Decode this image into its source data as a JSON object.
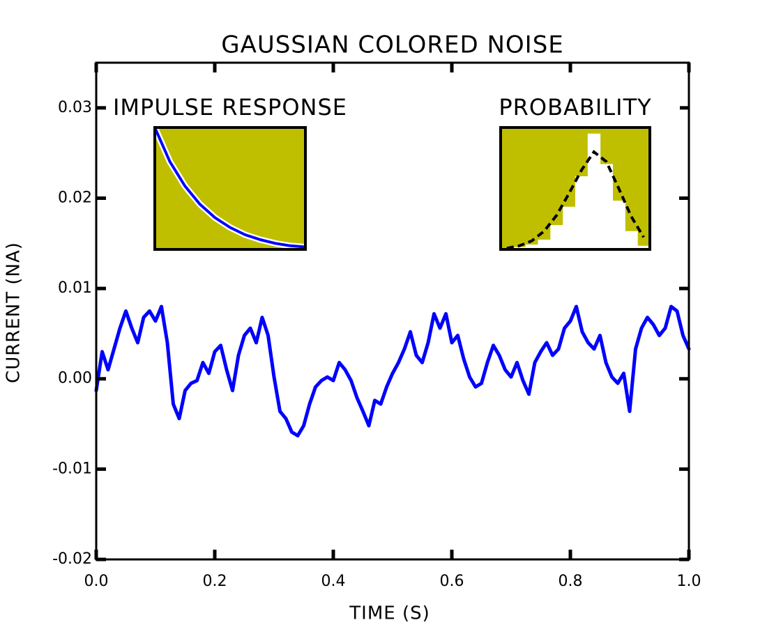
{
  "chart_data": [
    {
      "type": "line",
      "title": "GAUSSIAN COLORED NOISE",
      "xlabel": "TIME (S)",
      "ylabel": "CURRENT (NA)",
      "color": "#0000ff",
      "x": [
        0.0,
        0.01,
        0.02,
        0.03,
        0.04,
        0.05,
        0.06,
        0.07,
        0.08,
        0.09,
        0.1,
        0.11,
        0.12,
        0.13,
        0.14,
        0.15,
        0.16,
        0.17,
        0.18,
        0.19,
        0.2,
        0.21,
        0.22,
        0.23,
        0.24,
        0.25,
        0.26,
        0.27,
        0.28,
        0.29,
        0.3,
        0.31,
        0.32,
        0.33,
        0.34,
        0.35,
        0.36,
        0.37,
        0.38,
        0.39,
        0.4,
        0.41,
        0.42,
        0.43,
        0.44,
        0.45,
        0.46,
        0.47,
        0.48,
        0.49,
        0.5,
        0.51,
        0.52,
        0.53,
        0.54,
        0.55,
        0.56,
        0.57,
        0.58,
        0.59,
        0.6,
        0.61,
        0.62,
        0.63,
        0.64,
        0.65,
        0.66,
        0.67,
        0.68,
        0.69,
        0.7,
        0.71,
        0.72,
        0.73,
        0.74,
        0.75,
        0.76,
        0.77,
        0.78,
        0.79,
        0.8,
        0.81,
        0.82,
        0.83,
        0.84,
        0.85,
        0.86,
        0.87,
        0.88,
        0.89,
        0.9,
        0.91,
        0.92,
        0.93,
        0.94,
        0.95,
        0.96,
        0.97,
        0.98,
        0.99,
        1.0
      ],
      "values": [
        -0.0013,
        0.003,
        0.001,
        0.0033,
        0.0056,
        0.0075,
        0.0056,
        0.004,
        0.0068,
        0.0075,
        0.0064,
        0.008,
        0.004,
        -0.0028,
        -0.0044,
        -0.0013,
        -0.0005,
        -0.0002,
        0.0018,
        0.0006,
        0.003,
        0.0037,
        0.001,
        -0.0013,
        0.0026,
        0.0048,
        0.0056,
        0.004,
        0.0068,
        0.0048,
        0.0002,
        -0.0036,
        -0.0044,
        -0.0059,
        -0.0063,
        -0.0052,
        -0.0028,
        -0.0009,
        -0.0002,
        0.0002,
        -0.0002,
        0.0018,
        0.001,
        -0.0002,
        -0.0021,
        -0.0036,
        -0.0052,
        -0.0024,
        -0.0028,
        -0.0009,
        0.0006,
        0.0018,
        0.0033,
        0.0052,
        0.0026,
        0.0018,
        0.004,
        0.0072,
        0.0056,
        0.0072,
        0.004,
        0.0048,
        0.0022,
        0.0002,
        -0.0009,
        -0.0005,
        0.0018,
        0.0037,
        0.0026,
        0.001,
        0.0002,
        0.0018,
        -0.0002,
        -0.0017,
        0.0018,
        0.003,
        0.004,
        0.0026,
        0.0033,
        0.0056,
        0.0064,
        0.008,
        0.0052,
        0.004,
        0.0033,
        0.0048,
        0.0018,
        0.0002,
        -0.0005,
        0.0006,
        -0.0036,
        0.0033,
        0.0056,
        0.0068,
        0.006,
        0.0048,
        0.0056,
        0.008,
        0.0075,
        0.0048,
        0.0033
      ],
      "xlim": [
        0,
        1
      ],
      "ylim": [
        -0.02,
        0.035
      ],
      "xticks": [
        {
          "value": 0,
          "label": "0.0"
        },
        0.2,
        0.4,
        0.6,
        0.8,
        {
          "value": 1,
          "label": "1.0"
        }
      ],
      "yticks": [
        -0.02,
        -0.01,
        {
          "value": 0,
          "label": "0.00"
        },
        0.01,
        0.02,
        0.03
      ]
    },
    {
      "type": "line",
      "title": "IMPULSE RESPONSE",
      "color": "#0000ff",
      "background": "#bfbf00",
      "x": [
        0,
        0.1,
        0.2,
        0.3,
        0.4,
        0.5,
        0.6,
        0.7,
        0.8,
        0.9,
        1.0
      ],
      "values": [
        1.0,
        0.72,
        0.52,
        0.37,
        0.26,
        0.18,
        0.12,
        0.08,
        0.05,
        0.03,
        0.02
      ],
      "xlim": [
        0,
        1
      ],
      "ylim": [
        0,
        1
      ]
    },
    {
      "type": "histogram",
      "title": "PROBABILITY",
      "color": "#ffffff",
      "background": "#bfbf00",
      "bins": [
        -0.008,
        -0.0065,
        -0.005,
        -0.0035,
        -0.002,
        -0.0005,
        0.001,
        0.0025,
        0.004,
        0.0055,
        0.007,
        0.0085,
        0.01
      ],
      "values": [
        1,
        2,
        4,
        8,
        20,
        35,
        60,
        95,
        70,
        40,
        15,
        3
      ],
      "fit": {
        "color": "#000000",
        "x": [
          -0.00725,
          -0.00575,
          -0.00425,
          -0.00275,
          -0.00125,
          0.00025,
          0.00175,
          0.00325,
          0.00475,
          0.00625,
          0.00775,
          0.00925
        ],
        "values": [
          1,
          3,
          7,
          15,
          28,
          46,
          65,
          80,
          72,
          50,
          27,
          10
        ]
      },
      "xlim": [
        -0.008,
        0.01
      ],
      "ylim": [
        0,
        100
      ]
    }
  ]
}
